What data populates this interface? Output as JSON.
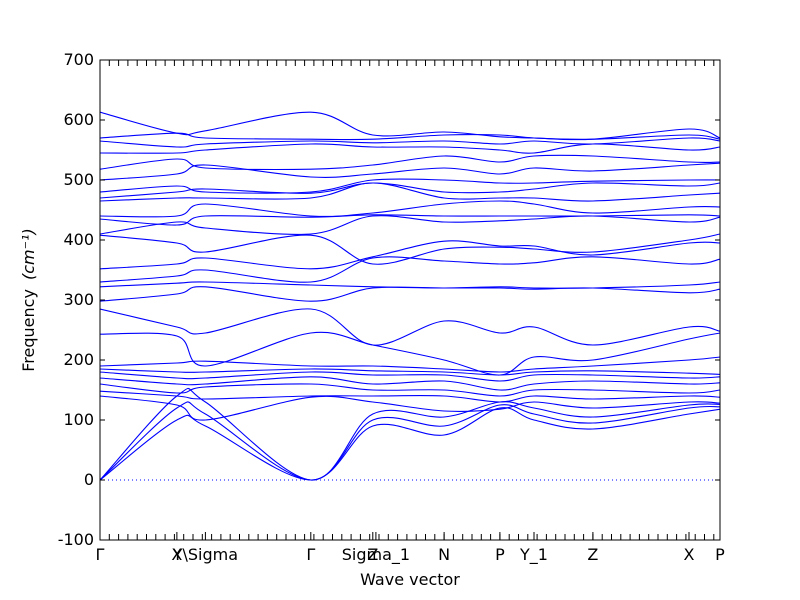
{
  "chart_data": {
    "type": "line",
    "xlabel": "Wave vector",
    "ylabel": "Frequency",
    "ylabel_unit": "(cm⁻¹)",
    "ylim": [
      -100,
      700
    ],
    "yticks": [
      -100,
      0,
      100,
      200,
      300,
      400,
      500,
      600,
      700
    ],
    "grid": false,
    "line_color": "#0000ff",
    "zero_line_color": "#0000ff",
    "x_tick_labels": [
      {
        "label": "Γ",
        "x": 0.0
      },
      {
        "label": "X",
        "x": 1.24
      },
      {
        "label": "Y\\Sigma",
        "x": 1.7
      },
      {
        "label": "Γ",
        "x": 3.4
      },
      {
        "label": "Z",
        "x": 4.4
      },
      {
        "label": "Sigma_1",
        "x": 4.45
      },
      {
        "label": "N",
        "x": 5.55
      },
      {
        "label": "P",
        "x": 6.45
      },
      {
        "label": "Y_1",
        "x": 7.0
      },
      {
        "label": "Z",
        "x": 7.95
      },
      {
        "label": "X",
        "x": 9.5
      },
      {
        "label": "P",
        "x": 10.0
      }
    ],
    "xlim": [
      0,
      10
    ],
    "series": [
      {
        "x": [
          0,
          1.24,
          1.7,
          3.4,
          4.4,
          5.55,
          6.45,
          7.0,
          7.95,
          9.5,
          10
        ],
        "values": [
          0,
          100,
          90,
          0,
          90,
          75,
          120,
          100,
          85,
          110,
          118
        ]
      },
      {
        "x": [
          0,
          1.24,
          1.7,
          3.4,
          4.4,
          5.55,
          6.45,
          7.0,
          7.95,
          9.5,
          10
        ],
        "values": [
          0,
          120,
          110,
          0,
          100,
          90,
          125,
          110,
          95,
          120,
          122
        ]
      },
      {
        "x": [
          0,
          1.24,
          1.7,
          3.4,
          4.4,
          5.55,
          6.45,
          7.0,
          7.95,
          9.5,
          10
        ],
        "values": [
          0,
          140,
          130,
          0,
          110,
          105,
          130,
          120,
          105,
          125,
          126
        ]
      },
      {
        "x": [
          0,
          1.24,
          1.7,
          3.4,
          4.4,
          5.55,
          6.45,
          7.0,
          7.95,
          9.5,
          10
        ],
        "values": [
          140,
          125,
          100,
          138,
          130,
          115,
          118,
          130,
          120,
          130,
          128
        ]
      },
      {
        "x": [
          0,
          1.24,
          1.7,
          3.4,
          4.4,
          5.55,
          6.45,
          7.0,
          7.95,
          9.5,
          10
        ],
        "values": [
          148,
          140,
          135,
          140,
          140,
          140,
          130,
          140,
          135,
          140,
          138
        ]
      },
      {
        "x": [
          0,
          1.24,
          1.7,
          3.4,
          4.4,
          5.55,
          6.45,
          7.0,
          7.95,
          9.5,
          10
        ],
        "values": [
          160,
          145,
          155,
          160,
          150,
          150,
          140,
          150,
          150,
          145,
          150
        ]
      },
      {
        "x": [
          0,
          1.24,
          1.7,
          3.4,
          4.4,
          5.55,
          6.45,
          7.0,
          7.95,
          9.5,
          10
        ],
        "values": [
          170,
          160,
          160,
          172,
          160,
          165,
          150,
          160,
          165,
          160,
          162
        ]
      },
      {
        "x": [
          0,
          1.24,
          1.7,
          3.4,
          4.4,
          5.55,
          6.45,
          7.0,
          7.95,
          9.5,
          10
        ],
        "values": [
          180,
          170,
          170,
          180,
          175,
          175,
          165,
          175,
          175,
          170,
          172
        ]
      },
      {
        "x": [
          0,
          1.24,
          1.7,
          3.4,
          4.4,
          5.55,
          6.45,
          7.0,
          7.95,
          9.5,
          10
        ],
        "values": [
          185,
          180,
          180,
          185,
          182,
          180,
          175,
          180,
          182,
          178,
          176
        ]
      },
      {
        "x": [
          0,
          1.24,
          1.7,
          3.4,
          4.4,
          5.55,
          6.45,
          7.0,
          7.95,
          9.5,
          10
        ],
        "values": [
          190,
          195,
          198,
          190,
          190,
          185,
          180,
          185,
          190,
          200,
          205
        ]
      },
      {
        "x": [
          0,
          1.24,
          1.7,
          3.4,
          4.4,
          5.55,
          6.45,
          7.0,
          7.95,
          9.5,
          10
        ],
        "values": [
          243,
          240,
          190,
          245,
          225,
          200,
          175,
          205,
          200,
          235,
          245
        ]
      },
      {
        "x": [
          0,
          1.24,
          1.7,
          3.4,
          4.4,
          5.55,
          6.45,
          7.0,
          7.95,
          9.5,
          10
        ],
        "values": [
          285,
          255,
          245,
          285,
          225,
          265,
          245,
          255,
          225,
          255,
          248
        ]
      },
      {
        "x": [
          0,
          1.24,
          1.7,
          3.4,
          4.4,
          5.55,
          6.45,
          7.0,
          7.95,
          9.5,
          10
        ],
        "values": [
          298,
          310,
          322,
          298,
          320,
          320,
          320,
          318,
          320,
          312,
          318
        ]
      },
      {
        "x": [
          0,
          1.24,
          1.7,
          3.4,
          4.4,
          5.55,
          6.45,
          7.0,
          7.95,
          9.5,
          10
        ],
        "values": [
          322,
          328,
          330,
          325,
          322,
          320,
          322,
          320,
          320,
          325,
          330
        ]
      },
      {
        "x": [
          0,
          1.24,
          1.7,
          3.4,
          4.4,
          5.55,
          6.45,
          7.0,
          7.95,
          9.5,
          10
        ],
        "values": [
          330,
          340,
          350,
          330,
          370,
          365,
          360,
          362,
          372,
          360,
          368
        ]
      },
      {
        "x": [
          0,
          1.24,
          1.7,
          3.4,
          4.4,
          5.55,
          6.45,
          7.0,
          7.95,
          9.5,
          10
        ],
        "values": [
          352,
          360,
          370,
          352,
          372,
          398,
          390,
          390,
          375,
          395,
          395
        ]
      },
      {
        "x": [
          0,
          1.24,
          1.7,
          3.4,
          4.4,
          5.55,
          6.45,
          7.0,
          7.95,
          9.5,
          10
        ],
        "values": [
          408,
          395,
          380,
          408,
          360,
          385,
          388,
          385,
          380,
          400,
          410
        ]
      },
      {
        "x": [
          0,
          1.24,
          1.7,
          3.4,
          4.4,
          5.55,
          6.45,
          7.0,
          7.95,
          9.5,
          10
        ],
        "values": [
          410,
          430,
          420,
          410,
          440,
          430,
          432,
          435,
          440,
          430,
          438
        ]
      },
      {
        "x": [
          0,
          1.24,
          1.7,
          3.4,
          4.4,
          5.55,
          6.45,
          7.0,
          7.95,
          9.5,
          10
        ],
        "values": [
          435,
          425,
          440,
          438,
          442,
          440,
          440,
          440,
          440,
          442,
          440
        ]
      },
      {
        "x": [
          0,
          1.24,
          1.7,
          3.4,
          4.4,
          5.55,
          6.45,
          7.0,
          7.95,
          9.5,
          10
        ],
        "values": [
          440,
          440,
          460,
          440,
          445,
          460,
          465,
          460,
          445,
          455,
          455
        ]
      },
      {
        "x": [
          0,
          1.24,
          1.7,
          3.4,
          4.4,
          5.55,
          6.45,
          7.0,
          7.95,
          9.5,
          10
        ],
        "values": [
          465,
          470,
          470,
          470,
          495,
          470,
          470,
          470,
          465,
          475,
          478
        ]
      },
      {
        "x": [
          0,
          1.24,
          1.7,
          3.4,
          4.4,
          5.55,
          6.45,
          7.0,
          7.95,
          9.5,
          10
        ],
        "values": [
          470,
          480,
          485,
          478,
          495,
          480,
          480,
          485,
          495,
          490,
          495
        ]
      },
      {
        "x": [
          0,
          1.24,
          1.7,
          3.4,
          4.4,
          5.55,
          6.45,
          7.0,
          7.95,
          9.5,
          10
        ],
        "values": [
          480,
          490,
          480,
          480,
          500,
          500,
          495,
          495,
          498,
          500,
          500
        ]
      },
      {
        "x": [
          0,
          1.24,
          1.7,
          3.4,
          4.4,
          5.55,
          6.45,
          7.0,
          7.95,
          9.5,
          10
        ],
        "values": [
          500,
          510,
          525,
          505,
          510,
          520,
          510,
          520,
          515,
          525,
          528
        ]
      },
      {
        "x": [
          0,
          1.24,
          1.7,
          3.4,
          4.4,
          5.55,
          6.45,
          7.0,
          7.95,
          9.5,
          10
        ],
        "values": [
          518,
          535,
          520,
          518,
          525,
          540,
          530,
          540,
          540,
          530,
          530
        ]
      },
      {
        "x": [
          0,
          1.24,
          1.7,
          3.4,
          4.4,
          5.55,
          6.45,
          7.0,
          7.95,
          9.5,
          10
        ],
        "values": [
          545,
          545,
          550,
          560,
          555,
          555,
          550,
          545,
          560,
          550,
          555
        ]
      },
      {
        "x": [
          0,
          1.24,
          1.7,
          3.4,
          4.4,
          5.55,
          6.45,
          7.0,
          7.95,
          9.5,
          10
        ],
        "values": [
          565,
          555,
          560,
          565,
          562,
          565,
          560,
          565,
          560,
          570,
          565
        ]
      },
      {
        "x": [
          0,
          1.24,
          1.7,
          3.4,
          4.4,
          5.55,
          6.45,
          7.0,
          7.95,
          9.5,
          10
        ],
        "values": [
          570,
          578,
          570,
          568,
          568,
          575,
          575,
          570,
          568,
          575,
          568
        ]
      },
      {
        "x": [
          0,
          1.24,
          1.7,
          3.4,
          4.4,
          5.55,
          6.45,
          7.0,
          7.95,
          9.5,
          10
        ],
        "values": [
          613,
          578,
          582,
          613,
          575,
          580,
          572,
          570,
          568,
          585,
          570
        ]
      }
    ]
  }
}
